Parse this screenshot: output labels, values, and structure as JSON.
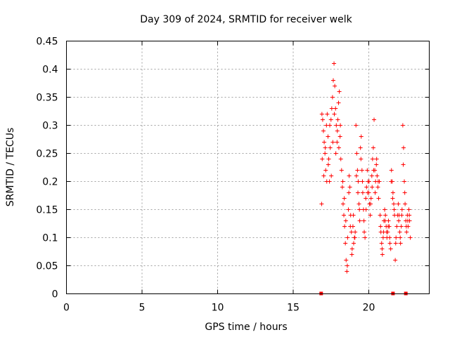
{
  "chart_data": {
    "type": "scatter",
    "title": "Day 309 of 2024, SRMTID for receiver welk",
    "xlabel": "GPS time / hours",
    "ylabel": "SRMTID / TECUs",
    "xlim": [
      0,
      24
    ],
    "ylim": [
      0,
      0.45
    ],
    "x_ticks": [
      0,
      5,
      10,
      15,
      20
    ],
    "x_tick_labels": [
      "0",
      "5",
      "10",
      "15",
      "20"
    ],
    "y_ticks": [
      0,
      0.05,
      0.1,
      0.15,
      0.2,
      0.25,
      0.3,
      0.35,
      0.4,
      0.45
    ],
    "y_tick_labels": [
      "0",
      "0.05",
      "0.1",
      "0.15",
      "0.2",
      "0.25",
      "0.3",
      "0.35",
      "0.4",
      "0.45"
    ],
    "grid": true,
    "marker": "+",
    "color": "#ff0000",
    "series": [
      {
        "name": "SRMTID",
        "points": [
          [
            16.9,
            0.32
          ],
          [
            16.95,
            0.31
          ],
          [
            17.0,
            0.29
          ],
          [
            17.05,
            0.27
          ],
          [
            17.1,
            0.25
          ],
          [
            17.15,
            0.22
          ],
          [
            17.2,
            0.3
          ],
          [
            17.25,
            0.32
          ],
          [
            17.3,
            0.28
          ],
          [
            17.35,
            0.24
          ],
          [
            17.4,
            0.2
          ],
          [
            17.45,
            0.26
          ],
          [
            17.5,
            0.31
          ],
          [
            17.55,
            0.33
          ],
          [
            17.6,
            0.35
          ],
          [
            17.65,
            0.38
          ],
          [
            17.7,
            0.41
          ],
          [
            17.75,
            0.37
          ],
          [
            17.8,
            0.33
          ],
          [
            17.85,
            0.3
          ],
          [
            17.9,
            0.27
          ],
          [
            17.95,
            0.31
          ],
          [
            18.0,
            0.34
          ],
          [
            18.05,
            0.36
          ],
          [
            18.1,
            0.28
          ],
          [
            18.15,
            0.24
          ],
          [
            18.2,
            0.22
          ],
          [
            16.92,
            0.24
          ],
          [
            17.02,
            0.21
          ],
          [
            17.12,
            0.26
          ],
          [
            17.22,
            0.2
          ],
          [
            17.32,
            0.23
          ],
          [
            17.42,
            0.3
          ],
          [
            17.52,
            0.21
          ],
          [
            17.62,
            0.27
          ],
          [
            17.72,
            0.32
          ],
          [
            17.82,
            0.25
          ],
          [
            17.92,
            0.29
          ],
          [
            18.02,
            0.26
          ],
          [
            18.12,
            0.3
          ],
          [
            16.88,
            0.16
          ],
          [
            18.25,
            0.19
          ],
          [
            18.3,
            0.16
          ],
          [
            18.35,
            0.14
          ],
          [
            18.4,
            0.12
          ],
          [
            18.45,
            0.09
          ],
          [
            18.5,
            0.06
          ],
          [
            18.55,
            0.04
          ],
          [
            18.6,
            0.1
          ],
          [
            18.65,
            0.15
          ],
          [
            18.7,
            0.21
          ],
          [
            18.75,
            0.19
          ],
          [
            18.8,
            0.14
          ],
          [
            18.85,
            0.11
          ],
          [
            18.9,
            0.08
          ],
          [
            18.95,
            0.12
          ],
          [
            19.0,
            0.09
          ],
          [
            19.05,
            0.1
          ],
          [
            19.1,
            0.11
          ],
          [
            19.15,
            0.3
          ],
          [
            19.2,
            0.25
          ],
          [
            19.25,
            0.22
          ],
          [
            19.3,
            0.2
          ],
          [
            19.35,
            0.16
          ],
          [
            19.4,
            0.13
          ],
          [
            19.45,
            0.26
          ],
          [
            19.5,
            0.28
          ],
          [
            19.55,
            0.22
          ],
          [
            19.6,
            0.18
          ],
          [
            19.65,
            0.15
          ],
          [
            19.7,
            0.11
          ],
          [
            19.75,
            0.1
          ],
          [
            18.28,
            0.2
          ],
          [
            18.38,
            0.17
          ],
          [
            18.48,
            0.13
          ],
          [
            18.58,
            0.05
          ],
          [
            18.68,
            0.18
          ],
          [
            18.78,
            0.12
          ],
          [
            18.88,
            0.07
          ],
          [
            18.98,
            0.14
          ],
          [
            19.08,
            0.1
          ],
          [
            19.18,
            0.21
          ],
          [
            19.28,
            0.18
          ],
          [
            19.38,
            0.15
          ],
          [
            19.48,
            0.24
          ],
          [
            19.58,
            0.2
          ],
          [
            19.68,
            0.13
          ],
          [
            19.8,
            0.17
          ],
          [
            19.85,
            0.19
          ],
          [
            19.9,
            0.22
          ],
          [
            19.95,
            0.2
          ],
          [
            20.0,
            0.18
          ],
          [
            20.05,
            0.16
          ],
          [
            20.1,
            0.14
          ],
          [
            20.15,
            0.17
          ],
          [
            20.2,
            0.21
          ],
          [
            20.25,
            0.24
          ],
          [
            20.3,
            0.26
          ],
          [
            20.35,
            0.31
          ],
          [
            20.4,
            0.22
          ],
          [
            20.45,
            0.2
          ],
          [
            20.5,
            0.23
          ],
          [
            20.55,
            0.21
          ],
          [
            20.6,
            0.19
          ],
          [
            20.65,
            0.17
          ],
          [
            20.7,
            0.2
          ],
          [
            19.82,
            0.15
          ],
          [
            19.92,
            0.18
          ],
          [
            20.02,
            0.2
          ],
          [
            20.12,
            0.16
          ],
          [
            20.22,
            0.19
          ],
          [
            20.32,
            0.22
          ],
          [
            20.42,
            0.18
          ],
          [
            20.52,
            0.24
          ],
          [
            20.62,
            0.2
          ],
          [
            20.75,
            0.14
          ],
          [
            20.8,
            0.11
          ],
          [
            20.85,
            0.09
          ],
          [
            20.9,
            0.07
          ],
          [
            20.95,
            0.1
          ],
          [
            21.0,
            0.13
          ],
          [
            21.05,
            0.15
          ],
          [
            21.1,
            0.14
          ],
          [
            21.15,
            0.12
          ],
          [
            21.2,
            0.1
          ],
          [
            21.25,
            0.11
          ],
          [
            21.3,
            0.13
          ],
          [
            21.35,
            0.12
          ],
          [
            21.4,
            0.09
          ],
          [
            21.45,
            0.08
          ],
          [
            21.5,
            0.22
          ],
          [
            21.55,
            0.2
          ],
          [
            21.6,
            0.18
          ],
          [
            21.65,
            0.16
          ],
          [
            21.7,
            0.14
          ],
          [
            21.75,
            0.06
          ],
          [
            21.8,
            0.1
          ],
          [
            21.85,
            0.12
          ],
          [
            21.9,
            0.14
          ],
          [
            20.78,
            0.12
          ],
          [
            20.88,
            0.08
          ],
          [
            20.98,
            0.11
          ],
          [
            21.08,
            0.13
          ],
          [
            21.18,
            0.11
          ],
          [
            21.28,
            0.12
          ],
          [
            21.38,
            0.1
          ],
          [
            21.48,
            0.2
          ],
          [
            21.58,
            0.17
          ],
          [
            21.68,
            0.15
          ],
          [
            21.78,
            0.09
          ],
          [
            21.95,
            0.16
          ],
          [
            22.0,
            0.14
          ],
          [
            22.05,
            0.11
          ],
          [
            22.1,
            0.09
          ],
          [
            22.15,
            0.12
          ],
          [
            22.2,
            0.15
          ],
          [
            22.25,
            0.3
          ],
          [
            22.3,
            0.26
          ],
          [
            22.35,
            0.2
          ],
          [
            22.4,
            0.16
          ],
          [
            22.45,
            0.13
          ],
          [
            22.5,
            0.11
          ],
          [
            22.55,
            0.14
          ],
          [
            22.6,
            0.12
          ],
          [
            22.65,
            0.15
          ],
          [
            22.7,
            0.13
          ],
          [
            22.75,
            0.1
          ],
          [
            21.98,
            0.13
          ],
          [
            22.08,
            0.1
          ],
          [
            22.18,
            0.14
          ],
          [
            22.28,
            0.23
          ],
          [
            22.38,
            0.18
          ],
          [
            22.48,
            0.12
          ],
          [
            22.58,
            0.13
          ],
          [
            22.68,
            0.14
          ]
        ]
      }
    ],
    "x_axis_markers": [
      16.85,
      21.6,
      22.45
    ]
  }
}
